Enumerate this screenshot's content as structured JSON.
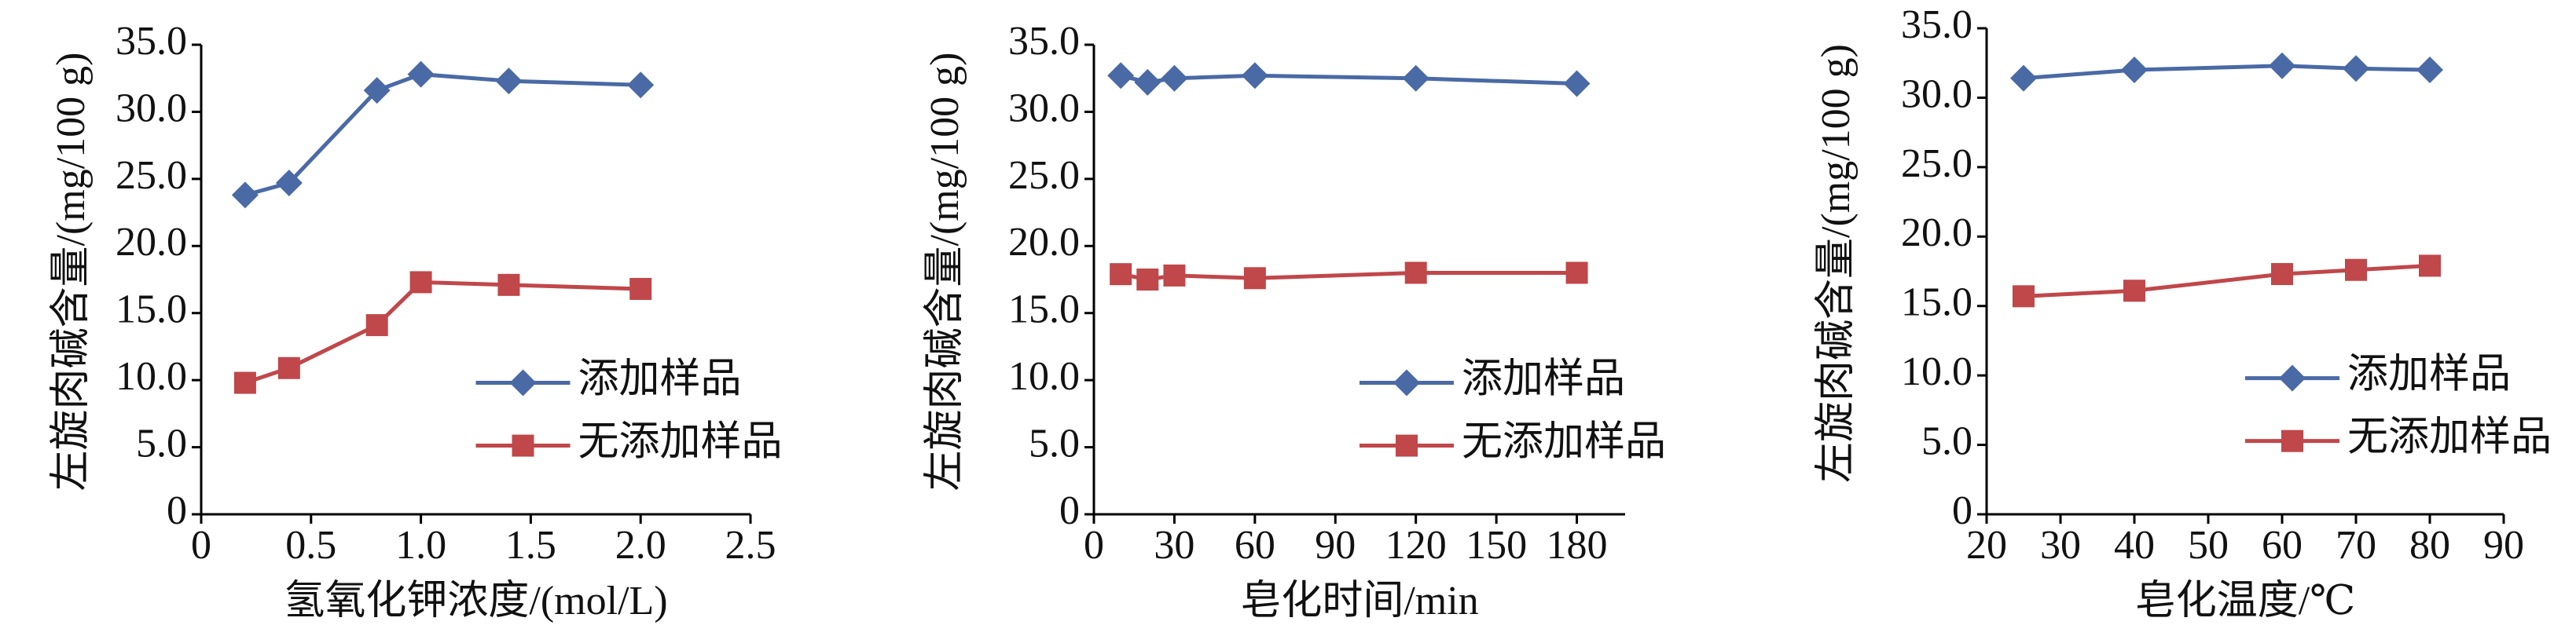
{
  "chart_data": [
    {
      "type": "line",
      "xlabel": "氢氧化钾浓度/(mol/L)",
      "ylabel": "左旋肉碱含量/(mg/100 g)",
      "x": [
        0.2,
        0.4,
        0.8,
        1.0,
        1.4,
        2.0
      ],
      "series": [
        {
          "name": "添加样品",
          "color": "#4a6aa5",
          "marker": "diamond",
          "values": [
            23.8,
            24.7,
            31.6,
            32.8,
            32.3,
            32.0
          ]
        },
        {
          "name": "无添加样品",
          "color": "#c0474a",
          "marker": "square",
          "values": [
            9.8,
            10.9,
            14.1,
            17.3,
            17.1,
            16.8
          ]
        }
      ],
      "xlim": [
        0,
        2.5
      ],
      "xticks": [
        0,
        0.5,
        {
          "value": 1,
          "label": "1.0"
        },
        1.5,
        {
          "value": 2,
          "label": "2.0"
        },
        2.5
      ],
      "ylim": [
        0,
        35
      ],
      "yticks": [
        0,
        {
          "value": 5,
          "label": "5.0"
        },
        {
          "value": 10,
          "label": "10.0"
        },
        {
          "value": 15,
          "label": "15.0"
        },
        {
          "value": 20,
          "label": "20.0"
        },
        {
          "value": 25,
          "label": "25.0"
        },
        {
          "value": 30,
          "label": "30.0"
        },
        {
          "value": 35,
          "label": "35.0"
        }
      ],
      "legend": "center right",
      "grid": false
    },
    {
      "type": "line",
      "xlabel": "皂化时间/min",
      "ylabel": "左旋肉碱含量/(mg/100 g)",
      "x": [
        10,
        20,
        30,
        60,
        120,
        180
      ],
      "series": [
        {
          "name": "添加样品",
          "color": "#4a6aa5",
          "marker": "diamond",
          "values": [
            32.7,
            32.2,
            32.5,
            32.7,
            32.5,
            32.1
          ]
        },
        {
          "name": "无添加样品",
          "color": "#c0474a",
          "marker": "square",
          "values": [
            17.9,
            17.5,
            17.8,
            17.6,
            18.0,
            18.0
          ]
        }
      ],
      "xlim": [
        0,
        198
      ],
      "xticks": [
        0,
        30,
        60,
        90,
        120,
        150,
        180
      ],
      "ylim": [
        0,
        35
      ],
      "yticks": [
        0,
        {
          "value": 5,
          "label": "5.0"
        },
        {
          "value": 10,
          "label": "10.0"
        },
        {
          "value": 15,
          "label": "15.0"
        },
        {
          "value": 20,
          "label": "20.0"
        },
        {
          "value": 25,
          "label": "25.0"
        },
        {
          "value": 30,
          "label": "30.0"
        },
        {
          "value": 35,
          "label": "35.0"
        }
      ],
      "legend": "center right",
      "grid": false
    },
    {
      "type": "line",
      "xlabel": "皂化温度/℃",
      "ylabel": "左旋肉碱含量/(mg/100 g)",
      "x": [
        25,
        40,
        60,
        70,
        80
      ],
      "series": [
        {
          "name": "添加样品",
          "color": "#4a6aa5",
          "marker": "diamond",
          "values": [
            31.4,
            32.0,
            32.3,
            32.1,
            32.0
          ]
        },
        {
          "name": "无添加样品",
          "color": "#c0474a",
          "marker": "square",
          "values": [
            15.7,
            16.1,
            17.3,
            17.6,
            17.9
          ]
        }
      ],
      "xlim": [
        20,
        90
      ],
      "xticks": [
        20,
        30,
        40,
        50,
        60,
        70,
        80,
        90
      ],
      "ylim": [
        0,
        35
      ],
      "yticks": [
        0,
        {
          "value": 5,
          "label": "5.0"
        },
        {
          "value": 10,
          "label": "10.0"
        },
        {
          "value": 15,
          "label": "15.0"
        },
        {
          "value": 20,
          "label": "20.0"
        },
        {
          "value": 25,
          "label": "25.0"
        },
        {
          "value": 30,
          "label": "30.0"
        },
        {
          "value": 35,
          "label": "35.0"
        }
      ],
      "legend": "center right",
      "grid": false
    }
  ]
}
